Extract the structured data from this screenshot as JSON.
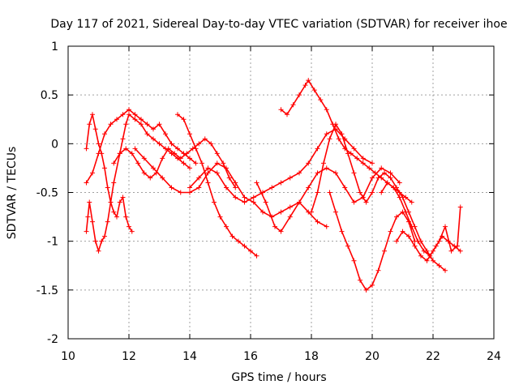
{
  "chart_data": {
    "type": "scatter",
    "title": "Day 117 of 2021, Sidereal Day-to-day VTEC variation (SDTVAR) for receiver ihoe",
    "xlabel": "GPS time / hours",
    "ylabel": "SDTVAR / TECUs",
    "xlim": [
      10,
      24
    ],
    "ylim": [
      -2,
      1
    ],
    "x_ticks": [
      10,
      12,
      14,
      16,
      18,
      20,
      22,
      24
    ],
    "x_tick_labels": [
      "10",
      "12",
      "14",
      "16",
      "18",
      "20",
      "22",
      "24"
    ],
    "y_ticks": [
      1,
      0.5,
      0,
      -0.5,
      -1,
      -1.5,
      -2
    ],
    "y_tick_labels": [
      "1",
      "0.5",
      "0",
      "-0.5",
      "-1",
      "-1.5",
      "-2"
    ],
    "grid": true,
    "marker": "+",
    "color": "#ff0000",
    "series": [
      {
        "name": "s1",
        "x": [
          10.6,
          10.7,
          10.8,
          10.9,
          11.0,
          11.1,
          11.2,
          11.3,
          11.4,
          11.5,
          11.6,
          11.7,
          11.8,
          11.9,
          12.0,
          12.1
        ],
        "y": [
          -0.05,
          0.2,
          0.3,
          0.15,
          0.0,
          -0.1,
          -0.25,
          -0.45,
          -0.6,
          -0.7,
          -0.75,
          -0.6,
          -0.55,
          -0.75,
          -0.85,
          -0.9
        ]
      },
      {
        "name": "s2",
        "x": [
          10.6,
          10.65,
          10.7,
          10.8,
          10.9,
          11.0,
          11.1,
          11.2,
          11.3,
          11.5,
          11.7,
          11.8,
          11.9,
          12.0,
          12.2,
          12.4,
          12.6,
          12.8,
          13.0,
          13.2,
          13.4,
          13.6,
          13.8,
          14.0
        ],
        "y": [
          -0.9,
          -0.75,
          -0.6,
          -0.8,
          -1.0,
          -1.1,
          -1.0,
          -0.95,
          -0.8,
          -0.4,
          -0.1,
          0.05,
          0.2,
          0.3,
          0.25,
          0.2,
          0.1,
          0.05,
          0.0,
          -0.05,
          -0.1,
          -0.15,
          -0.2,
          -0.25
        ]
      },
      {
        "name": "s3",
        "x": [
          10.6,
          10.8,
          11.0,
          11.2,
          11.4,
          11.6,
          11.8,
          12.0,
          12.2,
          12.4,
          12.6,
          12.8,
          13.0,
          13.2,
          13.4,
          13.6,
          13.8,
          14.0,
          14.2
        ],
        "y": [
          -0.4,
          -0.3,
          -0.1,
          0.1,
          0.2,
          0.25,
          0.3,
          0.35,
          0.3,
          0.25,
          0.2,
          0.15,
          0.2,
          0.1,
          0.0,
          -0.05,
          -0.1,
          -0.15,
          -0.2
        ]
      },
      {
        "name": "s4",
        "x": [
          11.5,
          11.7,
          11.9,
          12.1,
          12.3,
          12.5,
          12.7,
          12.9,
          13.1,
          13.3,
          13.5,
          13.7,
          13.9,
          14.1,
          14.3,
          14.5,
          14.7,
          14.9,
          15.1,
          15.3,
          15.5
        ],
        "y": [
          -0.2,
          -0.1,
          -0.05,
          -0.1,
          -0.2,
          -0.3,
          -0.35,
          -0.3,
          -0.15,
          -0.05,
          -0.1,
          -0.15,
          -0.1,
          -0.05,
          0.0,
          0.05,
          0.0,
          -0.1,
          -0.2,
          -0.35,
          -0.45
        ]
      },
      {
        "name": "s5",
        "x": [
          12.2,
          12.5,
          12.8,
          13.1,
          13.4,
          13.7,
          14.0,
          14.3,
          14.6,
          14.9,
          15.2,
          15.5,
          15.8,
          16.1,
          16.4,
          16.7,
          17.0,
          17.3,
          17.6,
          17.9,
          18.2,
          18.5
        ],
        "y": [
          -0.05,
          -0.15,
          -0.25,
          -0.35,
          -0.45,
          -0.5,
          -0.5,
          -0.45,
          -0.3,
          -0.2,
          -0.25,
          -0.4,
          -0.55,
          -0.6,
          -0.7,
          -0.75,
          -0.7,
          -0.65,
          -0.6,
          -0.7,
          -0.8,
          -0.85
        ]
      },
      {
        "name": "s6",
        "x": [
          13.6,
          13.8,
          14.0,
          14.2,
          14.4,
          14.6,
          14.8,
          15.0,
          15.2,
          15.4,
          15.6,
          15.8,
          16.0,
          16.2
        ],
        "y": [
          0.3,
          0.25,
          0.1,
          -0.05,
          -0.2,
          -0.4,
          -0.6,
          -0.75,
          -0.85,
          -0.95,
          -1.0,
          -1.05,
          -1.1,
          -1.15
        ]
      },
      {
        "name": "s7",
        "x": [
          14.0,
          14.3,
          14.6,
          14.9,
          15.2,
          15.5,
          15.8,
          16.1,
          16.4,
          16.7,
          17.0,
          17.3,
          17.6,
          17.9,
          18.2,
          18.5,
          18.8,
          19.1,
          19.4,
          19.7,
          20.0
        ],
        "y": [
          -0.45,
          -0.35,
          -0.25,
          -0.3,
          -0.45,
          -0.55,
          -0.6,
          -0.55,
          -0.5,
          -0.45,
          -0.4,
          -0.35,
          -0.3,
          -0.2,
          -0.05,
          0.1,
          0.15,
          0.05,
          -0.05,
          -0.15,
          -0.2
        ]
      },
      {
        "name": "s8",
        "x": [
          16.2,
          16.5,
          16.8,
          17.0,
          17.3,
          17.6,
          17.9,
          18.2,
          18.5,
          18.8,
          19.1,
          19.4,
          19.7,
          20.0,
          20.3,
          20.6,
          20.9
        ],
        "y": [
          -0.4,
          -0.6,
          -0.85,
          -0.9,
          -0.75,
          -0.6,
          -0.45,
          -0.3,
          -0.25,
          -0.3,
          -0.45,
          -0.6,
          -0.55,
          -0.35,
          -0.25,
          -0.3,
          -0.4
        ]
      },
      {
        "name": "s9",
        "x": [
          17.0,
          17.2,
          17.4,
          17.6,
          17.8,
          17.9,
          18.1,
          18.3,
          18.5,
          18.7,
          18.9,
          19.1,
          19.3,
          19.5,
          19.7,
          19.9,
          20.1,
          20.3,
          20.5,
          20.7,
          20.9,
          21.1,
          21.3
        ],
        "y": [
          0.35,
          0.3,
          0.4,
          0.5,
          0.6,
          0.65,
          0.55,
          0.45,
          0.35,
          0.2,
          0.05,
          -0.05,
          -0.1,
          -0.15,
          -0.2,
          -0.25,
          -0.3,
          -0.35,
          -0.4,
          -0.45,
          -0.5,
          -0.55,
          -0.6
        ]
      },
      {
        "name": "s10",
        "x": [
          18.0,
          18.2,
          18.4,
          18.6,
          18.8,
          19.0,
          19.2,
          19.4,
          19.6,
          19.8,
          20.0,
          20.2,
          20.4,
          20.6,
          20.8,
          21.0,
          21.2,
          21.4,
          21.6,
          21.8,
          22.0,
          22.2,
          22.4
        ],
        "y": [
          -0.7,
          -0.5,
          -0.2,
          0.05,
          0.2,
          0.1,
          -0.1,
          -0.3,
          -0.5,
          -0.6,
          -0.5,
          -0.35,
          -0.3,
          -0.35,
          -0.45,
          -0.55,
          -0.7,
          -0.85,
          -1.0,
          -1.1,
          -1.2,
          -1.25,
          -1.3
        ]
      },
      {
        "name": "s11",
        "x": [
          18.6,
          18.8,
          19.0,
          19.2,
          19.4,
          19.6,
          19.8,
          20.0,
          20.2,
          20.4,
          20.6,
          20.8,
          21.0,
          21.2,
          21.4
        ],
        "y": [
          -0.5,
          -0.7,
          -0.9,
          -1.05,
          -1.2,
          -1.4,
          -1.5,
          -1.45,
          -1.3,
          -1.1,
          -0.9,
          -0.75,
          -0.7,
          -0.8,
          -1.0
        ]
      },
      {
        "name": "s12",
        "x": [
          20.3,
          20.5,
          20.7,
          20.9,
          21.1,
          21.3,
          21.5,
          21.7,
          21.9,
          22.1,
          22.3,
          22.5,
          22.7,
          22.9
        ],
        "y": [
          -0.5,
          -0.4,
          -0.45,
          -0.55,
          -0.7,
          -0.85,
          -1.0,
          -1.1,
          -1.15,
          -1.05,
          -0.95,
          -1.0,
          -1.05,
          -1.1
        ]
      },
      {
        "name": "s13",
        "x": [
          20.8,
          21.0,
          21.2,
          21.4,
          21.6,
          21.8,
          22.0,
          22.2,
          22.4,
          22.6,
          22.8,
          22.9
        ],
        "y": [
          -1.0,
          -0.9,
          -0.95,
          -1.05,
          -1.15,
          -1.2,
          -1.1,
          -1.0,
          -0.85,
          -1.1,
          -1.05,
          -0.65
        ]
      }
    ]
  }
}
